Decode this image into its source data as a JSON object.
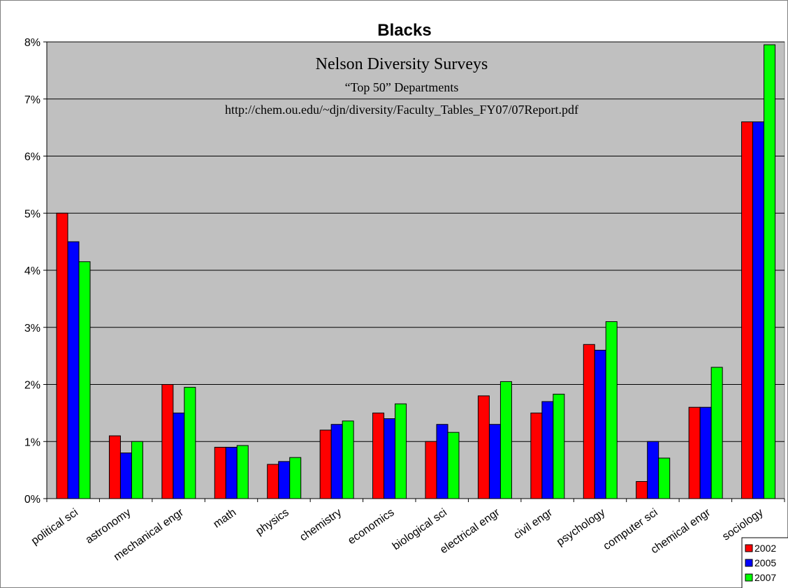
{
  "chart_data": {
    "type": "bar",
    "title": "Blacks",
    "annotation": {
      "line1": "Nelson Diversity Surveys",
      "line2": "“Top 50” Departments",
      "line3": "http://chem.ou.edu/~djn/diversity/Faculty_Tables_FY07/07Report.pdf"
    },
    "categories": [
      "political sci",
      "astronomy",
      "mechanical engr",
      "math",
      "physics",
      "chemistry",
      "economics",
      "biological sci",
      "electrical engr",
      "civil engr",
      "psychology",
      "computer sci",
      "chemical engr",
      "sociology"
    ],
    "series": [
      {
        "name": "2002",
        "color": "#ff0000",
        "values": [
          5.0,
          1.1,
          2.0,
          0.9,
          0.6,
          1.2,
          1.5,
          1.0,
          1.8,
          1.5,
          2.7,
          0.3,
          1.6,
          6.6
        ]
      },
      {
        "name": "2005",
        "color": "#0000ff",
        "values": [
          4.5,
          0.8,
          1.5,
          0.9,
          0.65,
          1.3,
          1.4,
          1.3,
          1.3,
          1.7,
          2.6,
          1.0,
          1.6,
          6.6
        ]
      },
      {
        "name": "2007",
        "color": "#00ff00",
        "values": [
          4.15,
          1.0,
          1.95,
          0.93,
          0.72,
          1.36,
          1.66,
          1.16,
          2.05,
          1.83,
          3.1,
          0.71,
          2.3,
          7.95
        ]
      }
    ],
    "yticks": [
      "0%",
      "1%",
      "2%",
      "3%",
      "4%",
      "5%",
      "6%",
      "7%",
      "8%"
    ],
    "ylim": [
      0,
      8
    ],
    "yunit": "%",
    "xlabel": "",
    "ylabel": "",
    "grid": true,
    "legend_position": "bottom-right",
    "plot_background": "#c0c0c0"
  }
}
